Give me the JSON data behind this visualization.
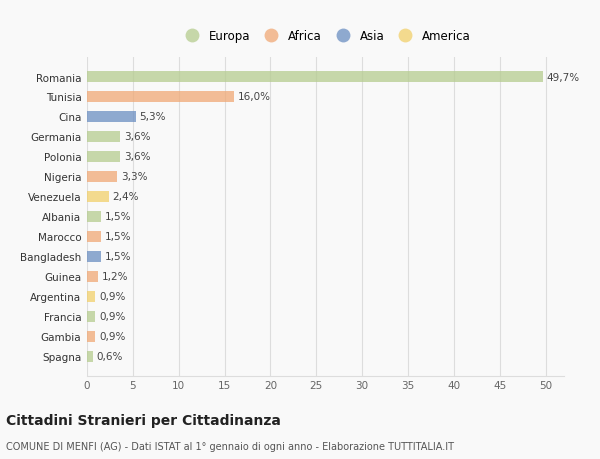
{
  "countries": [
    "Spagna",
    "Gambia",
    "Francia",
    "Argentina",
    "Guinea",
    "Bangladesh",
    "Marocco",
    "Albania",
    "Venezuela",
    "Nigeria",
    "Polonia",
    "Germania",
    "Cina",
    "Tunisia",
    "Romania"
  ],
  "values": [
    0.6,
    0.9,
    0.9,
    0.9,
    1.2,
    1.5,
    1.5,
    1.5,
    2.4,
    3.3,
    3.6,
    3.6,
    5.3,
    16.0,
    49.7
  ],
  "labels": [
    "0,6%",
    "0,9%",
    "0,9%",
    "0,9%",
    "1,2%",
    "1,5%",
    "1,5%",
    "1,5%",
    "2,4%",
    "3,3%",
    "3,6%",
    "3,6%",
    "5,3%",
    "16,0%",
    "49,7%"
  ],
  "continents": [
    "Europa",
    "Africa",
    "Europa",
    "America",
    "Africa",
    "Asia",
    "Africa",
    "Europa",
    "America",
    "Africa",
    "Europa",
    "Europa",
    "Asia",
    "Africa",
    "Europa"
  ],
  "continent_colors": {
    "Europa": "#b5cc8e",
    "Africa": "#f0a875",
    "Asia": "#6b8ec2",
    "America": "#f2d06b"
  },
  "legend_order": [
    "Europa",
    "Africa",
    "Asia",
    "America"
  ],
  "legend_colors": [
    "#b5cc8e",
    "#f0a875",
    "#6b8ec2",
    "#f2d06b"
  ],
  "xlim": [
    0,
    52
  ],
  "xticks": [
    0,
    5,
    10,
    15,
    20,
    25,
    30,
    35,
    40,
    45,
    50
  ],
  "title": "Cittadini Stranieri per Cittadinanza",
  "subtitle": "COMUNE DI MENFI (AG) - Dati ISTAT al 1° gennaio di ogni anno - Elaborazione TUTTITALIA.IT",
  "background_color": "#f9f9f9",
  "grid_color": "#dddddd",
  "bar_alpha": 0.75,
  "label_fontsize": 7.5,
  "tick_fontsize": 7.5,
  "legend_fontsize": 8.5,
  "title_fontsize": 10,
  "subtitle_fontsize": 7
}
